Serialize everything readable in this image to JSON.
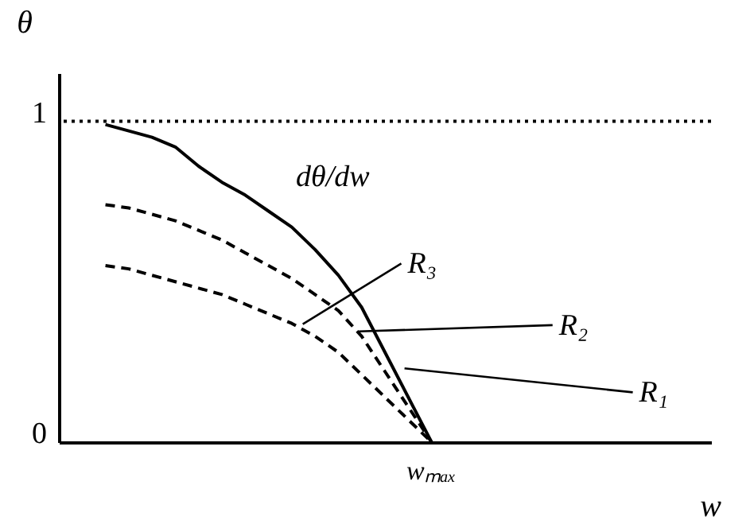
{
  "chart_data": {
    "type": "line",
    "xlabel": "w",
    "ylabel": "θ",
    "categories": [
      null,
      null,
      null,
      null,
      null,
      null,
      null,
      null,
      null,
      null,
      null,
      null,
      null,
      null,
      null,
      null,
      null,
      null,
      null,
      null,
      null,
      null,
      null,
      null,
      null,
      null,
      null,
      null,
      null
    ],
    "ylim": [
      0,
      1.15
    ],
    "yticks": [
      0,
      1
    ],
    "tick_labels": "y",
    "grid": false,
    "legend": false,
    "marker": "none",
    "series": [
      {
        "color": "#000000",
        "line_style": "solid",
        "values": [
          null,
          null,
          0.99,
          0.97,
          0.95,
          0.92,
          0.86,
          0.81,
          0.77,
          0.72,
          0.67,
          0.6,
          0.52,
          0.42,
          0.28,
          0.14,
          0,
          null,
          null,
          null,
          null,
          null,
          null,
          null,
          null,
          null,
          null,
          null,
          null
        ]
      },
      {
        "color": "#000000",
        "line_style": "dashed",
        "values": [
          null,
          null,
          0.74,
          0.73,
          0.71,
          0.69,
          0.66,
          0.63,
          0.59,
          0.55,
          0.51,
          0.46,
          0.41,
          0.33,
          0.22,
          0.11,
          0,
          null,
          null,
          null,
          null,
          null,
          null,
          null,
          null,
          null,
          null,
          null,
          null
        ]
      },
      {
        "color": "#000000",
        "line_style": "dashed",
        "values": [
          null,
          null,
          0.55,
          0.54,
          0.52,
          0.5,
          0.48,
          0.46,
          0.43,
          0.4,
          0.37,
          0.33,
          0.28,
          0.21,
          0.14,
          0.07,
          0,
          null,
          null,
          null,
          null,
          null,
          null,
          null,
          null,
          null,
          null,
          null,
          null
        ]
      }
    ],
    "ref_lines": [
      {
        "axis": "y",
        "value": 1,
        "color": "#000000",
        "line_style": "dotted"
      }
    ],
    "annotations": [
      "dθ/dw",
      "R₁",
      "R₂",
      "R₃",
      "wₘₐₓ"
    ]
  }
}
